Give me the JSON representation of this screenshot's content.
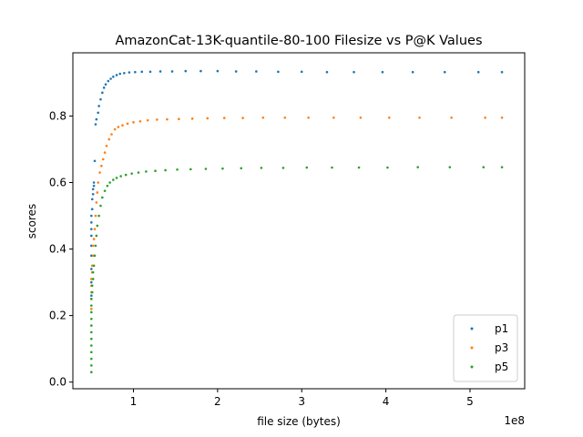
{
  "chart_data": {
    "type": "scatter",
    "title": "AmazonCat-13K-quantile-80-100 Filesize vs P@K Values",
    "xlabel": "file size (bytes)",
    "ylabel": "scores",
    "x_offset_label": "1e8",
    "xlim": [
      28000000,
      565000000
    ],
    "ylim": [
      -0.02,
      0.99
    ],
    "x_ticks": [
      {
        "value": 100000000,
        "label": "1"
      },
      {
        "value": 200000000,
        "label": "2"
      },
      {
        "value": 300000000,
        "label": "3"
      },
      {
        "value": 400000000,
        "label": "4"
      },
      {
        "value": 500000000,
        "label": "5"
      }
    ],
    "y_ticks": [
      {
        "value": 0.0,
        "label": "0.0"
      },
      {
        "value": 0.2,
        "label": "0.2"
      },
      {
        "value": 0.4,
        "label": "0.4"
      },
      {
        "value": 0.6,
        "label": "0.6"
      },
      {
        "value": 0.8,
        "label": "0.8"
      }
    ],
    "grid": false,
    "legend_position": "lower-right",
    "series": [
      {
        "name": "p1",
        "color": "#1f77b4",
        "points": [
          [
            50000000,
            0.26
          ],
          [
            50000000,
            0.3
          ],
          [
            50000000,
            0.34
          ],
          [
            50000000,
            0.38
          ],
          [
            50000000,
            0.41
          ],
          [
            50000000,
            0.44
          ],
          [
            50000000,
            0.46
          ],
          [
            50000000,
            0.48
          ],
          [
            50000000,
            0.5
          ],
          [
            51000000,
            0.52
          ],
          [
            51000000,
            0.55
          ],
          [
            52000000,
            0.565
          ],
          [
            52000000,
            0.58
          ],
          [
            53000000,
            0.59
          ],
          [
            53000000,
            0.6
          ],
          [
            54000000,
            0.665
          ],
          [
            55000000,
            0.775
          ],
          [
            56000000,
            0.79
          ],
          [
            58000000,
            0.81
          ],
          [
            59000000,
            0.83
          ],
          [
            61000000,
            0.85
          ],
          [
            63000000,
            0.87
          ],
          [
            65000000,
            0.885
          ],
          [
            67000000,
            0.895
          ],
          [
            70000000,
            0.905
          ],
          [
            73000000,
            0.912
          ],
          [
            76000000,
            0.918
          ],
          [
            80000000,
            0.923
          ],
          [
            84000000,
            0.927
          ],
          [
            89000000,
            0.929
          ],
          [
            95000000,
            0.931
          ],
          [
            102000000,
            0.932
          ],
          [
            110000000,
            0.933
          ],
          [
            120000000,
            0.933
          ],
          [
            132000000,
            0.934
          ],
          [
            146000000,
            0.934
          ],
          [
            162000000,
            0.935
          ],
          [
            180000000,
            0.935
          ],
          [
            200000000,
            0.935
          ],
          [
            222000000,
            0.934
          ],
          [
            246000000,
            0.934
          ],
          [
            272000000,
            0.933
          ],
          [
            300000000,
            0.933
          ],
          [
            330000000,
            0.932
          ],
          [
            362000000,
            0.932
          ],
          [
            396000000,
            0.932
          ],
          [
            432000000,
            0.932
          ],
          [
            470000000,
            0.932
          ],
          [
            510000000,
            0.932
          ],
          [
            538000000,
            0.932
          ]
        ]
      },
      {
        "name": "p3",
        "color": "#ff7f0e",
        "points": [
          [
            50000000,
            0.22
          ],
          [
            50000000,
            0.25
          ],
          [
            50000000,
            0.27
          ],
          [
            50000000,
            0.29
          ],
          [
            50000000,
            0.31
          ],
          [
            51000000,
            0.33
          ],
          [
            51000000,
            0.35
          ],
          [
            52000000,
            0.38
          ],
          [
            52000000,
            0.41
          ],
          [
            53000000,
            0.43
          ],
          [
            54000000,
            0.46
          ],
          [
            55000000,
            0.5
          ],
          [
            56000000,
            0.54
          ],
          [
            57000000,
            0.57
          ],
          [
            58000000,
            0.6
          ],
          [
            60000000,
            0.63
          ],
          [
            62000000,
            0.65
          ],
          [
            64000000,
            0.67
          ],
          [
            66000000,
            0.69
          ],
          [
            68000000,
            0.71
          ],
          [
            71000000,
            0.73
          ],
          [
            74000000,
            0.745
          ],
          [
            78000000,
            0.76
          ],
          [
            82000000,
            0.767
          ],
          [
            87000000,
            0.772
          ],
          [
            93000000,
            0.777
          ],
          [
            100000000,
            0.781
          ],
          [
            108000000,
            0.784
          ],
          [
            117000000,
            0.787
          ],
          [
            128000000,
            0.789
          ],
          [
            140000000,
            0.79
          ],
          [
            154000000,
            0.791
          ],
          [
            170000000,
            0.792
          ],
          [
            188000000,
            0.793
          ],
          [
            208000000,
            0.794
          ],
          [
            230000000,
            0.794
          ],
          [
            254000000,
            0.795
          ],
          [
            280000000,
            0.795
          ],
          [
            308000000,
            0.795
          ],
          [
            338000000,
            0.795
          ],
          [
            370000000,
            0.795
          ],
          [
            404000000,
            0.795
          ],
          [
            440000000,
            0.795
          ],
          [
            478000000,
            0.795
          ],
          [
            518000000,
            0.795
          ],
          [
            538000000,
            0.795
          ]
        ]
      },
      {
        "name": "p5",
        "color": "#2ca02c",
        "points": [
          [
            50000000,
            0.03
          ],
          [
            50000000,
            0.05
          ],
          [
            50000000,
            0.07
          ],
          [
            50000000,
            0.09
          ],
          [
            50000000,
            0.11
          ],
          [
            50000000,
            0.13
          ],
          [
            50000000,
            0.15
          ],
          [
            50000000,
            0.17
          ],
          [
            50000000,
            0.19
          ],
          [
            50000000,
            0.21
          ],
          [
            50000000,
            0.23
          ],
          [
            50000000,
            0.25
          ],
          [
            51000000,
            0.27
          ],
          [
            51000000,
            0.29
          ],
          [
            52000000,
            0.31
          ],
          [
            52000000,
            0.33
          ],
          [
            53000000,
            0.35
          ],
          [
            54000000,
            0.38
          ],
          [
            55000000,
            0.41
          ],
          [
            56000000,
            0.44
          ],
          [
            57000000,
            0.47
          ],
          [
            59000000,
            0.5
          ],
          [
            61000000,
            0.53
          ],
          [
            63000000,
            0.555
          ],
          [
            66000000,
            0.575
          ],
          [
            69000000,
            0.59
          ],
          [
            72000000,
            0.6
          ],
          [
            76000000,
            0.608
          ],
          [
            80000000,
            0.614
          ],
          [
            85000000,
            0.619
          ],
          [
            91000000,
            0.623
          ],
          [
            98000000,
            0.627
          ],
          [
            106000000,
            0.63
          ],
          [
            115000000,
            0.633
          ],
          [
            126000000,
            0.635
          ],
          [
            138000000,
            0.637
          ],
          [
            152000000,
            0.639
          ],
          [
            168000000,
            0.64
          ],
          [
            186000000,
            0.641
          ],
          [
            206000000,
            0.642
          ],
          [
            228000000,
            0.643
          ],
          [
            252000000,
            0.644
          ],
          [
            278000000,
            0.644
          ],
          [
            306000000,
            0.645
          ],
          [
            336000000,
            0.645
          ],
          [
            368000000,
            0.645
          ],
          [
            402000000,
            0.645
          ],
          [
            438000000,
            0.646
          ],
          [
            476000000,
            0.646
          ],
          [
            516000000,
            0.646
          ],
          [
            538000000,
            0.646
          ]
        ]
      }
    ]
  }
}
